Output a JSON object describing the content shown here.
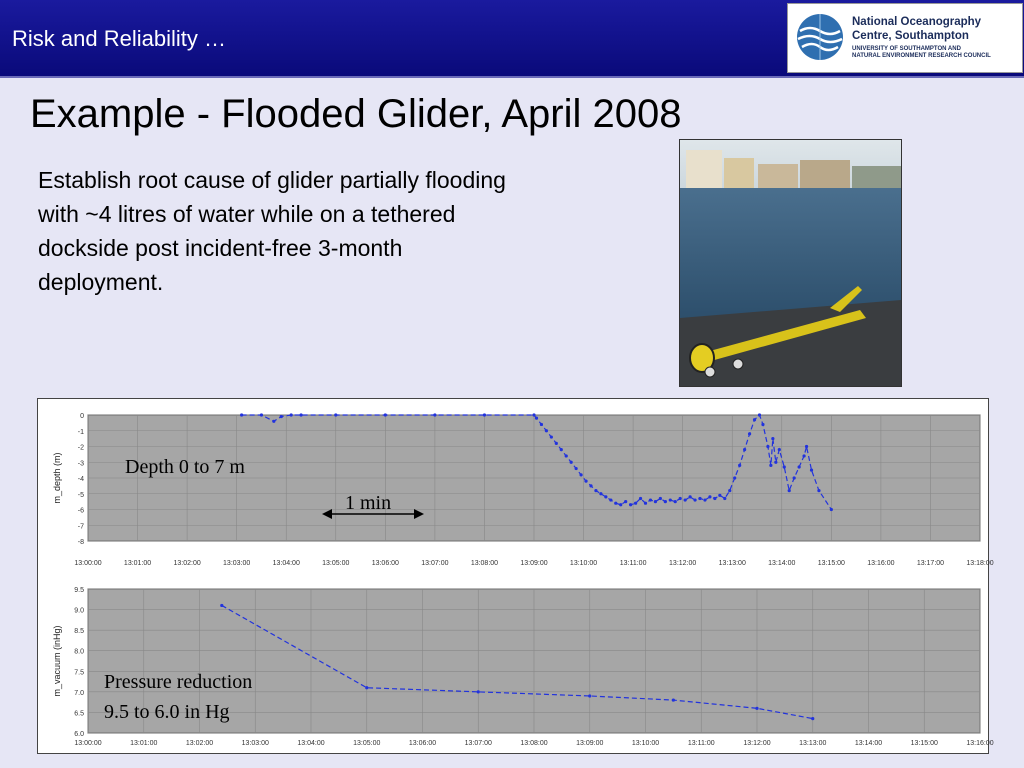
{
  "header": {
    "title": "Risk and Reliability …"
  },
  "logo": {
    "line1": "National Oceanography",
    "line2": "Centre, Southampton",
    "line3": "UNIVERSITY OF SOUTHAMPTON AND",
    "line4": "NATURAL ENVIRONMENT RESEARCH COUNCIL"
  },
  "slide": {
    "title": "Example - Flooded Glider, April 2008",
    "body": "Establish root cause of glider partially flooding\nwith ~4 litres of water while on a tethered\ndockside post incident-free 3-month\ndeployment."
  },
  "annotations": {
    "depth_label": "Depth 0 to 7 m",
    "time_label": "1 min",
    "pressure_line1": "Pressure reduction",
    "pressure_line2": "9.5 to 6.0 in Hg"
  },
  "colors": {
    "header": "#0a0a7a",
    "plot_bg": "#a6a6a6",
    "series": "#2233dd"
  },
  "chart_data": [
    {
      "type": "line",
      "ylabel": "m_depth (m)",
      "xlabel": "",
      "x_ticks": [
        "13:00:00",
        "13:01:00",
        "13:02:00",
        "13:03:00",
        "13:04:00",
        "13:05:00",
        "13:06:00",
        "13:07:00",
        "13:08:00",
        "13:09:00",
        "13:10:00",
        "13:11:00",
        "13:12:00",
        "13:13:00",
        "13:14:00",
        "13:15:00",
        "13:16:00",
        "13:17:00",
        "13:18:00"
      ],
      "y_ticks": [
        "0",
        "-1",
        "-2",
        "-3",
        "-4",
        "-5",
        "-6",
        "-7",
        "-8"
      ],
      "ylim": [
        -8,
        0
      ],
      "series": [
        {
          "x": [
            3.1,
            3.5,
            3.75,
            3.9,
            4.1,
            4.3,
            5,
            6,
            7,
            8,
            9,
            9.05,
            9.15,
            9.25,
            9.35,
            9.45,
            9.55,
            9.65,
            9.75,
            9.85,
            9.95,
            10.05,
            10.15,
            10.25,
            10.35,
            10.45,
            10.55,
            10.65,
            10.75,
            10.85,
            10.95,
            11.05,
            11.15,
            11.25,
            11.35,
            11.45,
            11.55,
            11.65,
            11.75,
            11.85,
            11.95,
            12.05,
            12.15,
            12.25,
            12.35,
            12.45,
            12.55,
            12.65,
            12.75,
            12.85,
            12.95,
            13.05,
            13.15,
            13.25,
            13.35,
            13.45,
            13.55,
            13.62,
            13.72,
            13.78,
            13.82,
            13.88,
            13.95,
            14.05,
            14.15,
            14.25,
            14.35,
            14.45,
            14.5,
            14.6,
            14.75,
            15.0
          ],
          "y": [
            0,
            0,
            -0.4,
            -0.1,
            0,
            0,
            0,
            0,
            0,
            0,
            0,
            -0.2,
            -0.6,
            -1.0,
            -1.4,
            -1.8,
            -2.2,
            -2.6,
            -3.0,
            -3.4,
            -3.8,
            -4.2,
            -4.5,
            -4.8,
            -5.0,
            -5.2,
            -5.4,
            -5.6,
            -5.7,
            -5.5,
            -5.7,
            -5.6,
            -5.3,
            -5.6,
            -5.4,
            -5.5,
            -5.3,
            -5.5,
            -5.4,
            -5.5,
            -5.3,
            -5.4,
            -5.2,
            -5.4,
            -5.3,
            -5.4,
            -5.2,
            -5.3,
            -5.1,
            -5.3,
            -4.8,
            -4.0,
            -3.2,
            -2.2,
            -1.2,
            -0.3,
            0,
            -0.6,
            -2.0,
            -3.2,
            -1.5,
            -3.0,
            -2.2,
            -3.3,
            -4.8,
            -4.0,
            -3.3,
            -2.6,
            -2.0,
            -3.5,
            -4.8,
            -6.0
          ]
        }
      ]
    },
    {
      "type": "line",
      "ylabel": "m_vacuum (inHg)",
      "xlabel": "",
      "x_ticks": [
        "13:00:00",
        "13:01:00",
        "13:02:00",
        "13:03:00",
        "13:04:00",
        "13:05:00",
        "13:06:00",
        "13:07:00",
        "13:08:00",
        "13:09:00",
        "13:10:00",
        "13:11:00",
        "13:12:00",
        "13:13:00",
        "13:14:00",
        "13:15:00",
        "13:16:00"
      ],
      "y_ticks": [
        "9.5",
        "9.0",
        "8.5",
        "8.0",
        "7.5",
        "7.0",
        "6.5",
        "6.0"
      ],
      "ylim": [
        6.0,
        9.5
      ],
      "series": [
        {
          "x": [
            2.4,
            5.0,
            7.0,
            9.0,
            10.5,
            12.0,
            13.0
          ],
          "y": [
            9.1,
            7.1,
            7.0,
            6.9,
            6.8,
            6.6,
            6.35
          ]
        }
      ]
    }
  ]
}
